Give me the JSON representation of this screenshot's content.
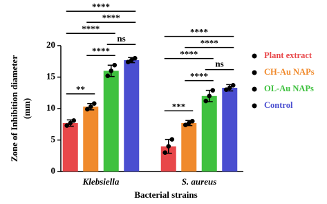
{
  "chart_data": {
    "type": "bar",
    "categories": [
      "Klebsiella",
      "S. aureus"
    ],
    "series": [
      {
        "name": "Plant extract",
        "color": "#e8474a",
        "values": [
          7.7,
          4
        ],
        "errors": [
          0.5,
          1.1
        ],
        "points": [
          [
            7.3,
            7.7,
            8.1
          ],
          [
            3.0,
            4.0,
            5.1
          ]
        ]
      },
      {
        "name": "CH-Au NAPs",
        "color": "#f08a2c",
        "values": [
          10.3,
          7.7
        ],
        "errors": [
          0.5,
          0.4
        ],
        "points": [
          [
            9.9,
            10.3,
            10.8
          ],
          [
            7.4,
            7.7,
            8.0
          ]
        ]
      },
      {
        "name": "OL-Au NAPs",
        "color": "#3fc13f",
        "values": [
          16,
          12
        ],
        "errors": [
          0.9,
          0.9
        ],
        "points": [
          [
            15.2,
            16.0,
            16.9
          ],
          [
            11.2,
            12.0,
            12.9
          ]
        ]
      },
      {
        "name": "Control",
        "color": "#4a4ed0",
        "values": [
          17.7,
          13.3
        ],
        "errors": [
          0.4,
          0.5
        ],
        "points": [
          [
            17.4,
            17.7,
            18.0
          ],
          [
            13.0,
            13.3,
            13.7
          ]
        ]
      }
    ],
    "brackets": [
      {
        "category": 0,
        "series": [
          0,
          1
        ],
        "label": "**"
      },
      {
        "category": 0,
        "series": [
          1,
          2
        ],
        "label": "****"
      },
      {
        "category": 0,
        "series": [
          2,
          3
        ],
        "label": "ns"
      },
      {
        "category": 0,
        "series": [
          0,
          2
        ],
        "label": "****"
      },
      {
        "category": 0,
        "series": [
          1,
          3
        ],
        "label": "****"
      },
      {
        "category": 0,
        "series": [
          0,
          3
        ],
        "label": "****"
      },
      {
        "category": 1,
        "series": [
          0,
          1
        ],
        "label": "***"
      },
      {
        "category": 1,
        "series": [
          1,
          2
        ],
        "label": "****"
      },
      {
        "category": 1,
        "series": [
          2,
          3
        ],
        "label": "ns"
      },
      {
        "category": 1,
        "series": [
          0,
          2
        ],
        "label": "****"
      },
      {
        "category": 1,
        "series": [
          1,
          3
        ],
        "label": "****"
      },
      {
        "category": 1,
        "series": [
          0,
          3
        ],
        "label": "****"
      }
    ],
    "x_label": "Bacterial strains",
    "y_label": [
      "Zone of Inhibition diameter",
      "(mm)"
    ],
    "ylim": [
      0,
      20
    ],
    "yticks": [
      0,
      5,
      10,
      15,
      20
    ],
    "legend": "right"
  }
}
